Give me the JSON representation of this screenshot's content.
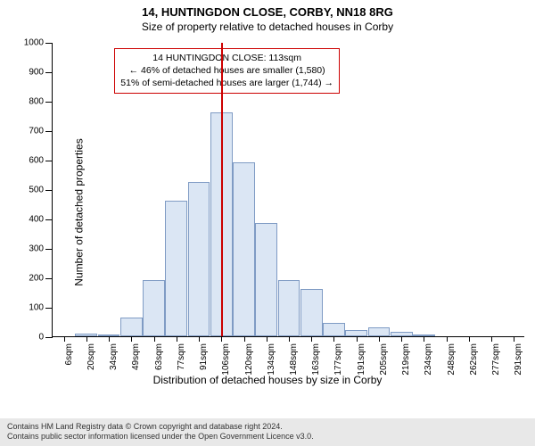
{
  "title": "14, HUNTINGDON CLOSE, CORBY, NN18 8RG",
  "subtitle": "Size of property relative to detached houses in Corby",
  "ylabel": "Number of detached properties",
  "xlabel": "Distribution of detached houses by size in Corby",
  "chart": {
    "type": "histogram",
    "ylim": [
      0,
      1000
    ],
    "ytick_step": 100,
    "background_color": "#ffffff",
    "bar_fill": "#dbe6f4",
    "bar_stroke": "#7f9bc4",
    "bar_width": 0.98,
    "categories": [
      "6sqm",
      "20sqm",
      "34sqm",
      "49sqm",
      "63sqm",
      "77sqm",
      "91sqm",
      "106sqm",
      "120sqm",
      "134sqm",
      "148sqm",
      "163sqm",
      "177sqm",
      "191sqm",
      "205sqm",
      "219sqm",
      "234sqm",
      "248sqm",
      "262sqm",
      "277sqm",
      "291sqm"
    ],
    "values": [
      0,
      10,
      5,
      65,
      190,
      460,
      525,
      760,
      590,
      385,
      190,
      160,
      45,
      20,
      30,
      15,
      5,
      0,
      0,
      0,
      0
    ]
  },
  "marker": {
    "line_color": "#cc0000",
    "position_category_index": 7.5,
    "box_border": "#cc0000",
    "lines": [
      "14 HUNTINGDON CLOSE: 113sqm",
      "← 46% of detached houses are smaller (1,580)",
      "51% of semi-detached houses are larger (1,744) →"
    ]
  },
  "footer": {
    "line1": "Contains HM Land Registry data © Crown copyright and database right 2024.",
    "line2": "Contains public sector information licensed under the Open Government Licence v3.0."
  }
}
